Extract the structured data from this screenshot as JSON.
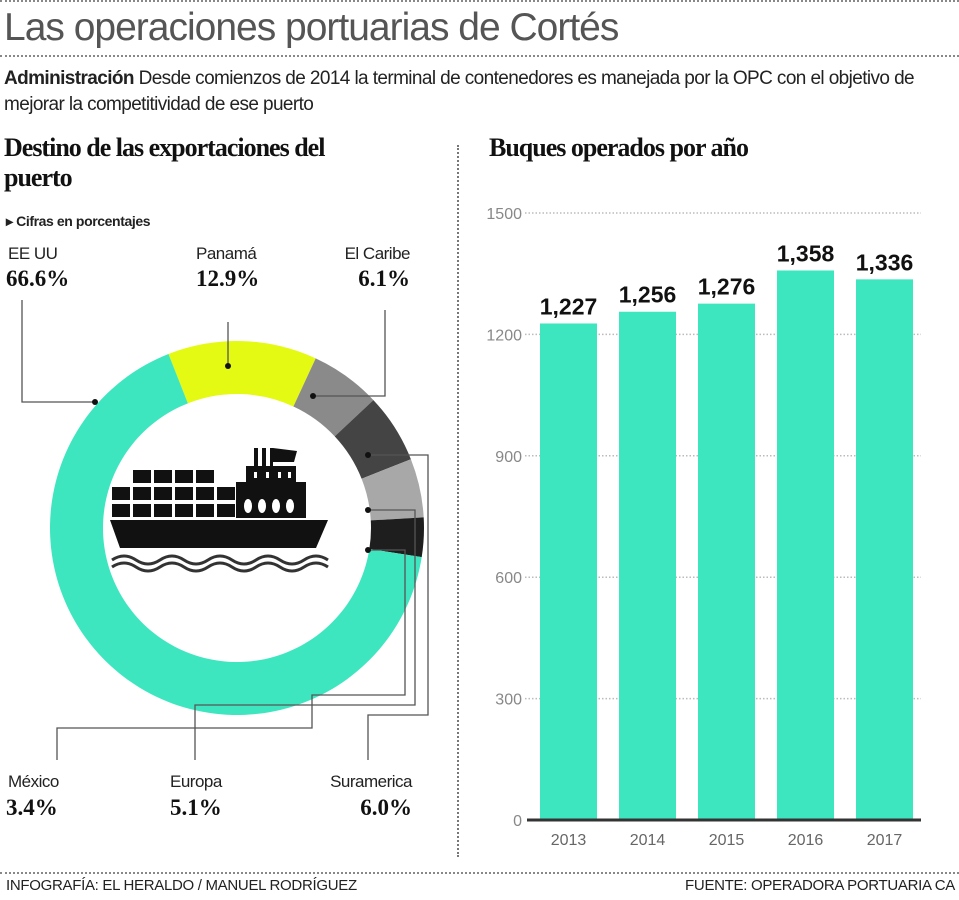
{
  "title": "Las operaciones portuarias de Cortés",
  "intro": {
    "lead": "Administración",
    "text": " Desde comienzos de 2014 la terminal de contenedores es manejada por la OPC con el objetivo de mejorar la competitividad de ese puerto"
  },
  "footer": {
    "credit": "INFOGRAFÍA: EL HERALDO / MANUEL RODRÍGUEZ",
    "source": "FUENTE: OPERADORA PORTUARIA CA"
  },
  "chart_data": [
    {
      "type": "pie",
      "title": "Destino de las exportaciones del puerto",
      "subtitle": "Cifras en porcentajes",
      "donut": true,
      "center_icon": "cargo-ship-icon",
      "slices": [
        {
          "label": "Panamá",
          "value": 12.9,
          "display": "12.9%",
          "color": "#e4fa13"
        },
        {
          "label": "El Caribe",
          "value": 6.1,
          "display": "6.1%",
          "color": "#8a8a8a"
        },
        {
          "label": "Suramerica",
          "value": 6.0,
          "display": "6.0%",
          "color": "#444444"
        },
        {
          "label": "Europa",
          "value": 5.1,
          "display": "5.1%",
          "color": "#a8a8a8"
        },
        {
          "label": "México",
          "value": 3.4,
          "display": "3.4%",
          "color": "#1e1e1e"
        },
        {
          "label": "EE UU",
          "value": 66.6,
          "display": "66.6%",
          "color": "#3ee6c0"
        }
      ]
    },
    {
      "type": "bar",
      "title": "Buques operados por año",
      "categories": [
        "2013",
        "2014",
        "2015",
        "2016",
        "2017"
      ],
      "values": [
        1227,
        1256,
        1276,
        1358,
        1336
      ],
      "value_labels": [
        "1,227",
        "1,256",
        "1,276",
        "1,358",
        "1,336"
      ],
      "yticks": [
        0,
        300,
        600,
        900,
        1200,
        1500
      ],
      "ylim": [
        0,
        1500
      ],
      "grid": true,
      "bar_color": "#3ee6c0"
    }
  ]
}
